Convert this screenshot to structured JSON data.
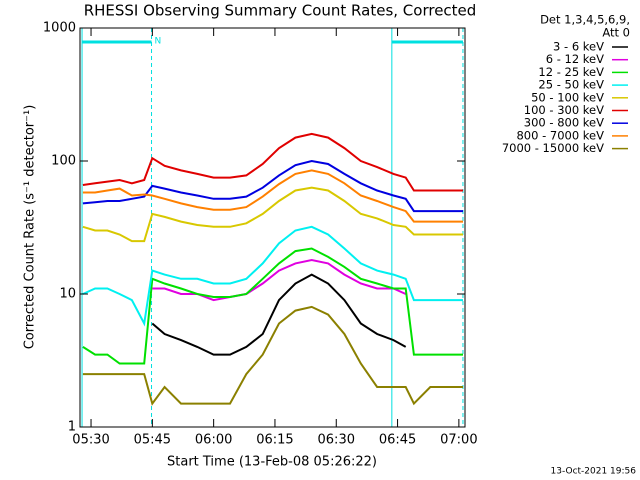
{
  "chart_data": {
    "type": "line",
    "title": "RHESSI Observing Summary Count Rates, Corrected",
    "xlabel": "Start Time (13-Feb-08 05:26:22)",
    "ylabel": "Corrected Count Rate (s⁻¹ detector⁻¹)",
    "legend_header": [
      "Det 1,3,4,5,6,9,",
      "Att 0"
    ],
    "footer": "13-Oct-2021 19:56",
    "log_y": true,
    "legend_position": "right",
    "xlim": [
      27.3,
      121.5
    ],
    "ylim": [
      1,
      1000
    ],
    "xticks": [
      {
        "value": 30,
        "label": "05:30"
      },
      {
        "value": 45,
        "label": "05:45"
      },
      {
        "value": 60,
        "label": "06:00"
      },
      {
        "value": 75,
        "label": "06:15"
      },
      {
        "value": 90,
        "label": "06:30"
      },
      {
        "value": 105,
        "label": "06:45"
      },
      {
        "value": 120,
        "label": "07:00"
      }
    ],
    "yticks": [
      1,
      10,
      100,
      1000
    ],
    "intervals_color": "#00e0e0",
    "intervals": [
      {
        "start": 27.8,
        "end": 44.8,
        "label": "N"
      },
      {
        "start": 103.6,
        "end": 121.0
      }
    ],
    "x": [
      28,
      31,
      34,
      37,
      40,
      43,
      45,
      48,
      52,
      56,
      60,
      64,
      68,
      72,
      76,
      80,
      84,
      88,
      92,
      96,
      100,
      104,
      107,
      109,
      113,
      117,
      121
    ],
    "series": [
      {
        "name": "3 - 6 keV",
        "color": "#000000",
        "values": [
          null,
          null,
          null,
          null,
          null,
          null,
          6,
          5,
          4.5,
          4,
          3.5,
          3.5,
          4,
          5,
          9,
          12,
          14,
          12,
          9,
          6,
          5,
          4.5,
          4,
          null,
          null,
          null,
          null
        ]
      },
      {
        "name": "6 - 12 keV",
        "color": "#e000e0",
        "values": [
          null,
          null,
          null,
          null,
          null,
          null,
          11,
          11,
          10,
          10,
          9,
          9.5,
          10,
          12,
          15,
          17,
          18,
          17,
          14,
          12,
          11,
          11,
          10,
          null,
          null,
          null,
          null
        ]
      },
      {
        "name": "12 - 25 keV",
        "color": "#00e000",
        "values": [
          4,
          3.5,
          3.5,
          3,
          3,
          3,
          13,
          12,
          11,
          10,
          9.5,
          9.5,
          10,
          13,
          17,
          21,
          22,
          19,
          16,
          13,
          12,
          11,
          11,
          3.5,
          3.5,
          3.5,
          3.5
        ]
      },
      {
        "name": "25 - 50 keV",
        "color": "#00f0f0",
        "values": [
          10,
          11,
          11,
          10,
          9,
          6,
          15,
          14,
          13,
          13,
          12,
          12,
          13,
          17,
          24,
          30,
          32,
          28,
          22,
          17,
          15,
          14,
          13,
          9,
          9,
          9,
          9
        ]
      },
      {
        "name": "50 - 100 keV",
        "color": "#d8c800",
        "values": [
          32,
          30,
          30,
          28,
          25,
          25,
          40,
          38,
          35,
          33,
          32,
          32,
          34,
          40,
          50,
          60,
          63,
          60,
          50,
          40,
          37,
          33,
          32,
          28,
          28,
          28,
          28
        ]
      },
      {
        "name": "100 - 300 keV",
        "color": "#e00000",
        "values": [
          66,
          68,
          70,
          72,
          68,
          72,
          105,
          92,
          85,
          80,
          75,
          75,
          78,
          95,
          125,
          150,
          160,
          150,
          125,
          100,
          90,
          80,
          75,
          60,
          60,
          60,
          60
        ]
      },
      {
        "name": "300 - 800 keV",
        "color": "#0000e0",
        "values": [
          48,
          49,
          50,
          50,
          52,
          54,
          65,
          62,
          58,
          55,
          52,
          52,
          54,
          63,
          78,
          93,
          100,
          95,
          80,
          68,
          60,
          55,
          52,
          42,
          42,
          42,
          42
        ]
      },
      {
        "name": "800 - 7000 keV",
        "color": "#ff8000",
        "values": [
          58,
          58,
          60,
          62,
          55,
          56,
          55,
          52,
          48,
          45,
          43,
          43,
          45,
          54,
          67,
          80,
          85,
          80,
          68,
          55,
          50,
          45,
          42,
          35,
          35,
          35,
          35
        ]
      },
      {
        "name": "7000 - 15000 keV",
        "color": "#8b8000",
        "values": [
          2.5,
          2.5,
          2.5,
          2.5,
          2.5,
          2.5,
          1.5,
          2,
          1.5,
          1.5,
          1.5,
          1.5,
          2.5,
          3.5,
          6,
          7.5,
          8,
          7,
          5,
          3,
          2,
          2,
          2,
          1.5,
          2,
          2,
          2
        ]
      }
    ]
  }
}
